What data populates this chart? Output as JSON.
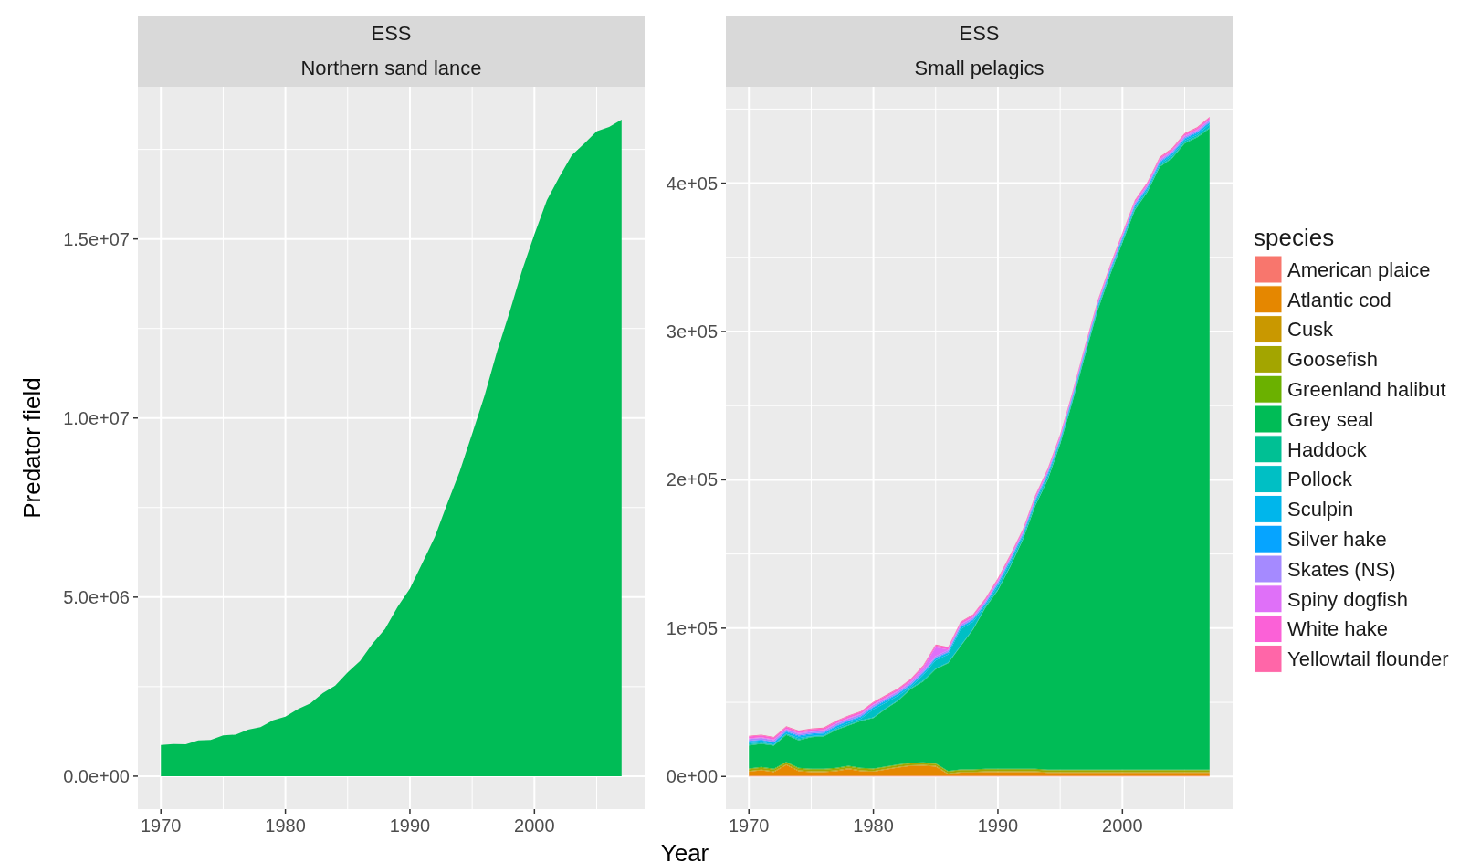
{
  "chart_data": [
    {
      "type": "area",
      "stacked": true,
      "title": "ESS",
      "subtitle": "Northern sand lance",
      "ylabel": "Predator field",
      "x": [
        1970,
        1971,
        1972,
        1973,
        1974,
        1975,
        1976,
        1977,
        1978,
        1979,
        1980,
        1981,
        1982,
        1983,
        1984,
        1985,
        1986,
        1987,
        1988,
        1989,
        1990,
        1991,
        1992,
        1993,
        1994,
        1995,
        1996,
        1997,
        1998,
        1999,
        2000,
        2001,
        2002,
        2003,
        2004,
        2005,
        2006,
        2007
      ],
      "xlim": [
        1968.15,
        2008.85
      ],
      "xticks": [
        1970,
        1980,
        1990,
        2000
      ],
      "ylim": [
        -920000,
        19250000
      ],
      "yticks": [
        {
          "value": 0,
          "label": "0.0e+00"
        },
        {
          "value": 5000000,
          "label": "5.0e+06"
        },
        {
          "value": 10000000,
          "label": "1.0e+07"
        },
        {
          "value": 15000000,
          "label": "1.5e+07"
        }
      ],
      "grid": true,
      "series": [
        {
          "color": "#00bc56",
          "values": [
            870000,
            900000,
            890000,
            1000000,
            1010000,
            1140000,
            1160000,
            1300000,
            1370000,
            1560000,
            1660000,
            1870000,
            2030000,
            2320000,
            2530000,
            2900000,
            3220000,
            3700000,
            4110000,
            4720000,
            5240000,
            5950000,
            6680000,
            7610000,
            8510000,
            9560000,
            10630000,
            11860000,
            12950000,
            14110000,
            15130000,
            16080000,
            16730000,
            17340000,
            17660000,
            18010000,
            18130000,
            18330000
          ]
        }
      ]
    },
    {
      "type": "area",
      "stacked": true,
      "title": "ESS",
      "subtitle": "Small pelagics",
      "xlabel": "Year",
      "legend_title": "species",
      "legend": "right",
      "x": [
        1970,
        1971,
        1972,
        1973,
        1974,
        1975,
        1976,
        1977,
        1978,
        1979,
        1980,
        1981,
        1982,
        1983,
        1984,
        1985,
        1986,
        1987,
        1988,
        1989,
        1990,
        1991,
        1992,
        1993,
        1994,
        1995,
        1996,
        1997,
        1998,
        1999,
        2000,
        2001,
        2002,
        2003,
        2004,
        2005,
        2006,
        2007
      ],
      "xlim": [
        1968.15,
        2008.85
      ],
      "xticks": [
        1970,
        1980,
        1990,
        2000
      ],
      "ylim": [
        -22000,
        465000
      ],
      "yticks": [
        {
          "value": 0,
          "label": "0e+00"
        },
        {
          "value": 100000,
          "label": "1e+05"
        },
        {
          "value": 200000,
          "label": "2e+05"
        },
        {
          "value": 300000,
          "label": "3e+05"
        },
        {
          "value": 400000,
          "label": "4e+05"
        }
      ],
      "grid": true,
      "series": [
        {
          "name": "American plaice",
          "color": "#f8766d",
          "values": [
            500,
            500,
            500,
            500,
            500,
            500,
            500,
            500,
            500,
            500,
            500,
            500,
            500,
            500,
            500,
            500,
            500,
            500,
            500,
            500,
            500,
            500,
            500,
            500,
            500,
            500,
            500,
            500,
            500,
            500,
            500,
            500,
            500,
            500,
            500,
            500,
            500,
            500
          ]
        },
        {
          "name": "Atlantic cod",
          "color": "#e58700",
          "values": [
            2700,
            3700,
            2500,
            7200,
            3100,
            2500,
            2500,
            3100,
            4500,
            3100,
            2700,
            4100,
            5500,
            6600,
            6800,
            6200,
            1000,
            2100,
            2100,
            2500,
            2500,
            2500,
            2500,
            2500,
            2000,
            2000,
            2000,
            2000,
            2000,
            2000,
            2000,
            2000,
            2000,
            2000,
            2000,
            2000,
            2000,
            2000
          ]
        },
        {
          "name": "Cusk",
          "color": "#c99800",
          "values": [
            500,
            500,
            500,
            500,
            500,
            500,
            500,
            500,
            500,
            500,
            500,
            500,
            500,
            500,
            500,
            500,
            500,
            500,
            500,
            500,
            500,
            500,
            500,
            500,
            500,
            500,
            500,
            500,
            500,
            500,
            500,
            500,
            500,
            500,
            500,
            500,
            500,
            500
          ]
        },
        {
          "name": "Goosefish",
          "color": "#a3a500",
          "values": [
            1200,
            1200,
            1200,
            1200,
            1200,
            1200,
            1200,
            1200,
            1200,
            1200,
            1200,
            1200,
            1200,
            1200,
            1200,
            1200,
            1200,
            1200,
            1200,
            1200,
            1200,
            1200,
            1200,
            1200,
            1200,
            1200,
            1200,
            1200,
            1200,
            1200,
            1200,
            1200,
            1200,
            1200,
            1200,
            1200,
            1200,
            1200
          ]
        },
        {
          "name": "Greenland halibut",
          "color": "#6bb100",
          "values": [
            500,
            500,
            500,
            500,
            500,
            500,
            500,
            500,
            500,
            500,
            500,
            500,
            500,
            500,
            500,
            500,
            500,
            500,
            500,
            500,
            500,
            500,
            500,
            500,
            500,
            500,
            500,
            500,
            500,
            500,
            500,
            500,
            500,
            500,
            500,
            500,
            500,
            500
          ]
        },
        {
          "name": "Grey seal",
          "color": "#00bc56",
          "values": [
            15600,
            15600,
            15600,
            18200,
            18600,
            21300,
            21700,
            25400,
            27100,
            31600,
            34000,
            38800,
            42900,
            49600,
            54600,
            63400,
            72600,
            82900,
            94200,
            108600,
            120200,
            136200,
            154200,
            177200,
            195200,
            219200,
            248200,
            279200,
            309200,
            333200,
            355200,
            377200,
            389200,
            406200,
            412200,
            422200,
            426200,
            432200
          ]
        },
        {
          "name": "Haddock",
          "color": "#00c094",
          "values": [
            500,
            500,
            500,
            500,
            500,
            500,
            500,
            500,
            500,
            500,
            500,
            500,
            500,
            500,
            500,
            500,
            500,
            500,
            500,
            500,
            500,
            500,
            500,
            500,
            500,
            500,
            500,
            500,
            500,
            500,
            500,
            500,
            500,
            500,
            500,
            500,
            500,
            500
          ]
        },
        {
          "name": "Pollock",
          "color": "#00bfc4",
          "values": [
            800,
            600,
            300,
            200,
            900,
            200,
            400,
            800,
            1200,
            1000,
            5400,
            3700,
            2900,
            900,
            3700,
            5500,
            5400,
            11100,
            4700,
            800,
            2700,
            2700,
            1700,
            1700,
            2200,
            1200,
            1200,
            1200,
            1200,
            1200,
            1200,
            1200,
            1200,
            1200,
            1200,
            1200,
            1200,
            2200
          ]
        },
        {
          "name": "Sculpin",
          "color": "#00b6eb",
          "values": [
            1200,
            1200,
            1200,
            1200,
            1200,
            1200,
            1200,
            1200,
            1200,
            1200,
            1200,
            1200,
            1200,
            1200,
            1200,
            1200,
            1200,
            1200,
            1200,
            1200,
            1200,
            1200,
            1200,
            1200,
            1200,
            1200,
            1200,
            1200,
            1200,
            1200,
            1200,
            1200,
            1200,
            1200,
            1200,
            1200,
            1200,
            1200
          ]
        },
        {
          "name": "Silver hake",
          "color": "#06a4ff",
          "values": [
            500,
            500,
            500,
            500,
            500,
            500,
            500,
            500,
            500,
            500,
            500,
            500,
            500,
            500,
            500,
            500,
            500,
            500,
            500,
            500,
            500,
            500,
            500,
            500,
            500,
            500,
            500,
            500,
            500,
            500,
            500,
            500,
            500,
            500,
            500,
            500,
            500,
            500
          ]
        },
        {
          "name": "Skates  (NS)",
          "color": "#a58aff",
          "values": [
            1200,
            1200,
            1200,
            1200,
            1200,
            1200,
            1200,
            1200,
            1200,
            1200,
            1200,
            1200,
            1200,
            1200,
            1200,
            1200,
            1200,
            1200,
            1200,
            1200,
            1200,
            1200,
            1200,
            1200,
            1200,
            1200,
            1200,
            1200,
            1200,
            1200,
            1200,
            1200,
            1200,
            1200,
            1200,
            1200,
            1200,
            1200
          ]
        },
        {
          "name": "Spiny dogfish",
          "color": "#df70f8",
          "values": [
            500,
            500,
            500,
            500,
            500,
            500,
            500,
            500,
            500,
            500,
            500,
            500,
            500,
            1000,
            2000,
            6000,
            500,
            500,
            500,
            500,
            500,
            500,
            500,
            500,
            500,
            500,
            500,
            500,
            500,
            500,
            500,
            500,
            500,
            500,
            500,
            500,
            500,
            500
          ]
        },
        {
          "name": "White hake",
          "color": "#fb61d7",
          "values": [
            1200,
            1200,
            1200,
            1200,
            1200,
            1200,
            1200,
            1200,
            1200,
            1200,
            1200,
            1200,
            1200,
            1200,
            1200,
            1200,
            1200,
            1200,
            1200,
            1200,
            1200,
            1200,
            1200,
            1200,
            1200,
            1200,
            1200,
            1200,
            1200,
            1200,
            1200,
            1200,
            1200,
            1200,
            1200,
            1200,
            1200,
            1200
          ]
        },
        {
          "name": "Yellowtail flounder",
          "color": "#ff66a8",
          "values": [
            500,
            500,
            500,
            500,
            500,
            500,
            500,
            500,
            500,
            500,
            500,
            500,
            500,
            500,
            500,
            500,
            500,
            500,
            500,
            500,
            500,
            500,
            500,
            500,
            500,
            500,
            500,
            500,
            500,
            500,
            500,
            500,
            500,
            500,
            500,
            500,
            500,
            500
          ]
        }
      ]
    }
  ]
}
